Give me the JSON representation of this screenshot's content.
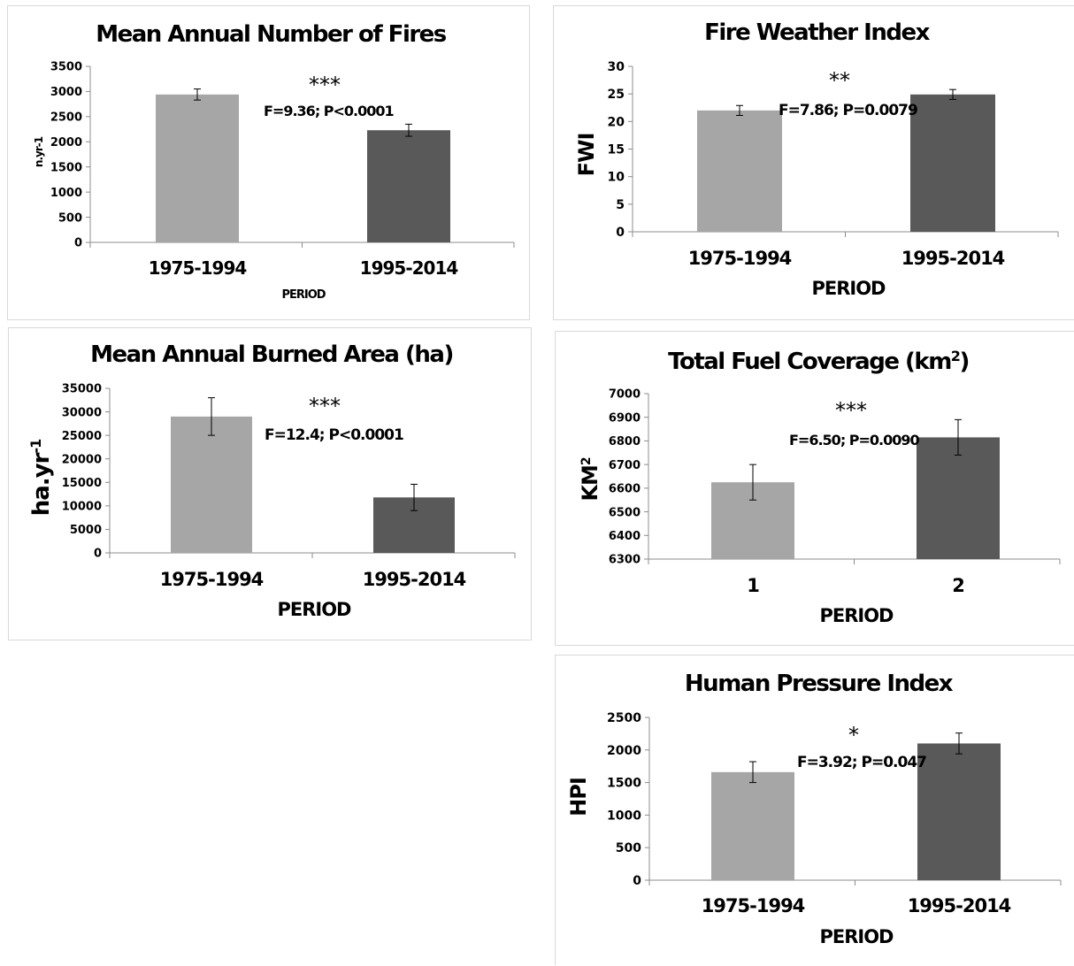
{
  "chart_data": [
    {
      "id": "fires",
      "type": "bar",
      "title": "Mean Annual Number of Fires",
      "ylabel": "n.yr-1",
      "xlabel": "PERIOD",
      "categories": [
        "1975-1994",
        "1995-2014"
      ],
      "values": [
        2940,
        2230
      ],
      "errors": [
        110,
        120
      ],
      "ylim": [
        0,
        3500
      ],
      "yticks": [
        "0",
        "500",
        "1000",
        "1500",
        "2000",
        "2500",
        "3000",
        "3500"
      ],
      "colors": [
        "#a6a6a6",
        "#595959"
      ],
      "significance": "***",
      "stat": "F=9.36; P<0.0001"
    },
    {
      "id": "fwi",
      "type": "bar",
      "title": "Fire Weather Index",
      "ylabel": "FWI",
      "xlabel": "PERIOD",
      "categories": [
        "1975-1994",
        "1995-2014"
      ],
      "values": [
        22,
        24.9
      ],
      "errors": [
        0.9,
        0.9
      ],
      "ylim": [
        0,
        30
      ],
      "yticks": [
        "0",
        "5",
        "10",
        "15",
        "20",
        "25",
        "30"
      ],
      "colors": [
        "#a6a6a6",
        "#595959"
      ],
      "significance": "**",
      "stat": "F=7.86; P=0.0079"
    },
    {
      "id": "burned",
      "type": "bar",
      "title": "Mean Annual Burned Area (ha)",
      "ylabel": "ha.yr",
      "ylabel_sup": "-1",
      "xlabel": "PERIOD",
      "categories": [
        "1975-1994",
        "1995-2014"
      ],
      "values": [
        29000,
        11800
      ],
      "errors": [
        4000,
        2800
      ],
      "ylim": [
        0,
        35000
      ],
      "yticks": [
        "0",
        "5000",
        "10000",
        "15000",
        "20000",
        "25000",
        "30000",
        "35000"
      ],
      "colors": [
        "#a6a6a6",
        "#595959"
      ],
      "significance": "***",
      "stat": "F=12.4; P<0.0001"
    },
    {
      "id": "fuel",
      "type": "bar",
      "title": "Total Fuel Coverage (km",
      "title_sup": "2",
      "title_end": ")",
      "ylabel": "KM",
      "ylabel_sup": "2",
      "xlabel": "PERIOD",
      "categories": [
        "1",
        "2"
      ],
      "values": [
        6625,
        6815
      ],
      "errors": [
        75,
        75
      ],
      "ylim": [
        6300,
        7000
      ],
      "yticks": [
        "6300",
        "6400",
        "6500",
        "6600",
        "6700",
        "6800",
        "6900",
        "7000"
      ],
      "colors": [
        "#a6a6a6",
        "#595959"
      ],
      "significance": "***",
      "stat": "F=6.50; P=0.0090"
    },
    {
      "id": "hpi",
      "type": "bar",
      "title": "Human Pressure Index",
      "ylabel": "HPI",
      "xlabel": "PERIOD",
      "categories": [
        "1975-1994",
        "1995-2014"
      ],
      "values": [
        1660,
        2100
      ],
      "errors": [
        160,
        160
      ],
      "ylim": [
        0,
        2500
      ],
      "yticks": [
        "0",
        "500",
        "1000",
        "1500",
        "2000",
        "2500"
      ],
      "colors": [
        "#a6a6a6",
        "#595959"
      ],
      "significance": "*",
      "stat": "F=3.92; P=0.047"
    }
  ]
}
